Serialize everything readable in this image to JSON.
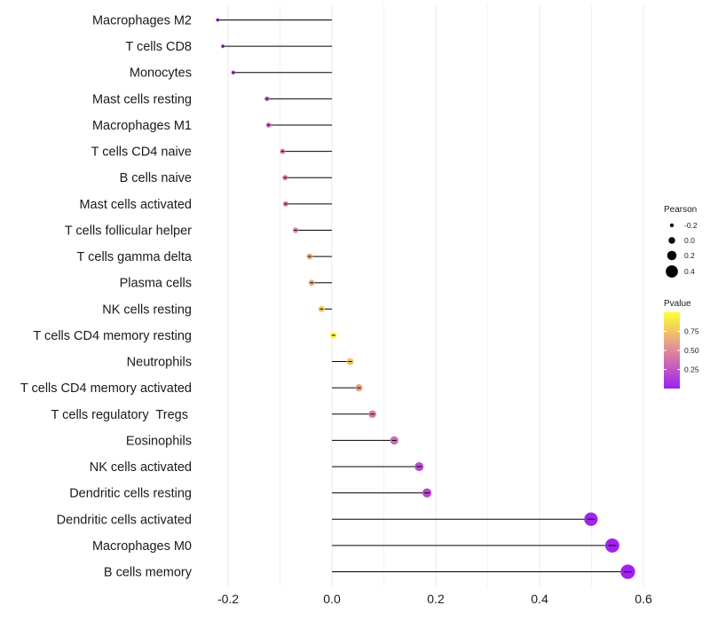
{
  "chart_data": {
    "type": "lollipop",
    "title": "",
    "xlabel": "",
    "ylabel": "",
    "xlim": [
      -0.2,
      0.6
    ],
    "x_ticks": [
      -0.2,
      0.0,
      0.2,
      0.4,
      0.6
    ],
    "x_tick_labels": [
      "-0.2",
      "0.0",
      "0.2",
      "0.4",
      "0.6"
    ],
    "grid": true,
    "legend_position": "right",
    "categories": [
      "Macrophages M2",
      "T cells CD8",
      "Monocytes",
      "Mast cells resting",
      "Macrophages M1",
      "T cells CD4 naive",
      "B cells naive",
      "Mast cells activated",
      "T cells follicular helper",
      "T cells gamma delta",
      "Plasma cells",
      "NK cells resting",
      "T cells CD4 memory resting",
      "Neutrophils",
      "T cells CD4 memory activated",
      "T cells regulatory  Tregs ",
      "Eosinophils",
      "NK cells activated",
      "Dendritic cells resting",
      "Dendritic cells activated",
      "Macrophages M0",
      "B cells memory"
    ],
    "pearson": [
      -0.22,
      -0.21,
      -0.19,
      -0.125,
      -0.122,
      -0.095,
      -0.09,
      -0.089,
      -0.07,
      -0.043,
      -0.039,
      -0.02,
      0.003,
      0.035,
      0.052,
      0.078,
      0.12,
      0.168,
      0.183,
      0.499,
      0.54,
      0.57
    ],
    "pvalue": [
      0.12,
      0.12,
      0.15,
      0.3,
      0.3,
      0.42,
      0.42,
      0.42,
      0.5,
      0.65,
      0.65,
      0.8,
      0.98,
      0.75,
      0.62,
      0.45,
      0.35,
      0.2,
      0.18,
      0.02,
      0.01,
      0.005
    ],
    "size_legend": {
      "title": "Pearson",
      "values": [
        -0.2,
        0.0,
        0.2,
        0.4
      ],
      "labels": [
        "-0.2",
        "0.0",
        "0.2",
        "0.4"
      ]
    },
    "color_legend": {
      "title": "Pvalue",
      "range": [
        0.0,
        1.0
      ],
      "ticks": [
        0.25,
        0.5,
        0.75
      ],
      "tick_labels": [
        "0.25",
        "0.50",
        "0.75"
      ],
      "low_color": "#a020f0",
      "mid_color": "#e08a9a",
      "high_color": "#ffff33"
    },
    "colors": {
      "stem": "#000000",
      "grid": "#ebebeb"
    }
  }
}
